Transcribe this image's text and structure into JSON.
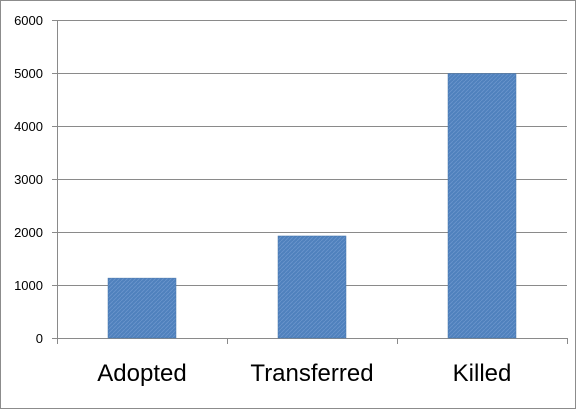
{
  "chart_data": {
    "type": "bar",
    "categories": [
      "Adopted",
      "Transferred",
      "Killed"
    ],
    "values": [
      1130,
      1925,
      4990
    ],
    "ylim": [
      0,
      6000
    ],
    "yticks": [
      0,
      1000,
      2000,
      3000,
      4000,
      5000,
      6000
    ],
    "grid": true,
    "bar_color": "#4f81bd",
    "title": "",
    "xlabel": "",
    "ylabel": ""
  }
}
